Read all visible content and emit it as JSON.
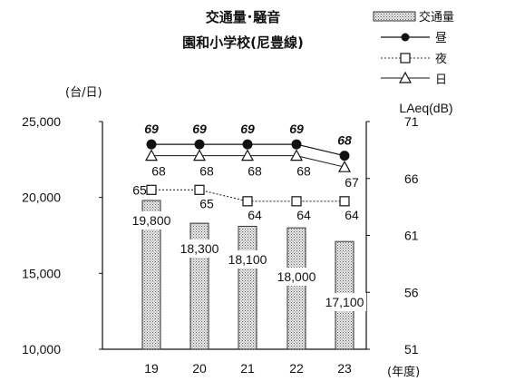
{
  "chart_data": {
    "type": "bar",
    "title": "交通量･騒音",
    "subtitle": "園和小学校(尼豊線)",
    "categories": [
      "19",
      "20",
      "21",
      "22",
      "23"
    ],
    "xlabel": "(年度)",
    "ylabel_left": "(台/日)",
    "ylabel_right": "LAeq(dB)",
    "y_left": {
      "ticks": [
        "10,000",
        "15,000",
        "20,000",
        "25,000"
      ],
      "ylim": [
        10000,
        25000
      ]
    },
    "y_right": {
      "ticks": [
        "51",
        "56",
        "61",
        "66",
        "71"
      ],
      "ylim": [
        51,
        71
      ]
    },
    "series": [
      {
        "name": "交通量",
        "type": "bar",
        "axis": "left",
        "values": [
          19800,
          18300,
          18100,
          18000,
          17100
        ],
        "labels": [
          "19,800",
          "18,300",
          "18,100",
          "18,000",
          "17,100"
        ]
      },
      {
        "name": "昼",
        "type": "line",
        "axis": "right",
        "marker": "filled-circle",
        "values": [
          69,
          69,
          69,
          69,
          68
        ]
      },
      {
        "name": "夜",
        "type": "line",
        "axis": "right",
        "marker": "open-square",
        "values": [
          65,
          65,
          64,
          64,
          64
        ]
      },
      {
        "name": "日",
        "type": "line",
        "axis": "right",
        "marker": "open-triangle",
        "values": [
          68,
          68,
          68,
          68,
          67
        ]
      }
    ],
    "legend_position": "top-right",
    "grid": false
  }
}
